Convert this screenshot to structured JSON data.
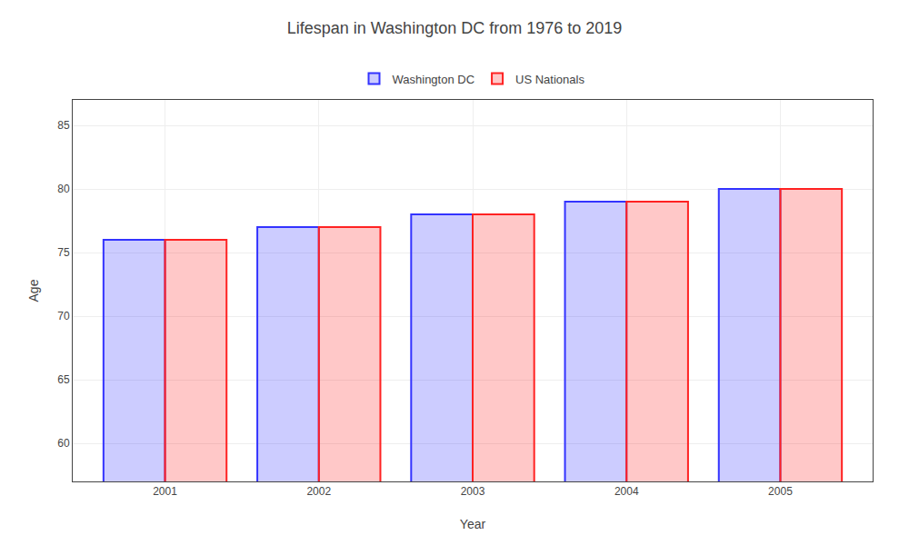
{
  "chart_data": {
    "type": "bar",
    "title": "Lifespan in Washington DC from 1976 to 2019",
    "x_label": "Year",
    "y_label": "Age",
    "categories": [
      "2001",
      "2002",
      "2003",
      "2004",
      "2005"
    ],
    "series": [
      {
        "name": "Washington DC",
        "color": "#3333ff",
        "values": [
          76,
          77,
          78,
          79,
          80
        ]
      },
      {
        "name": "US Nationals",
        "color": "#ff2222",
        "values": [
          76,
          77,
          78,
          79,
          80
        ]
      }
    ],
    "ylim": [
      57,
      87
    ],
    "yticks": [
      60,
      65,
      70,
      75,
      80,
      85
    ],
    "grid": true,
    "legend": "upper center"
  }
}
